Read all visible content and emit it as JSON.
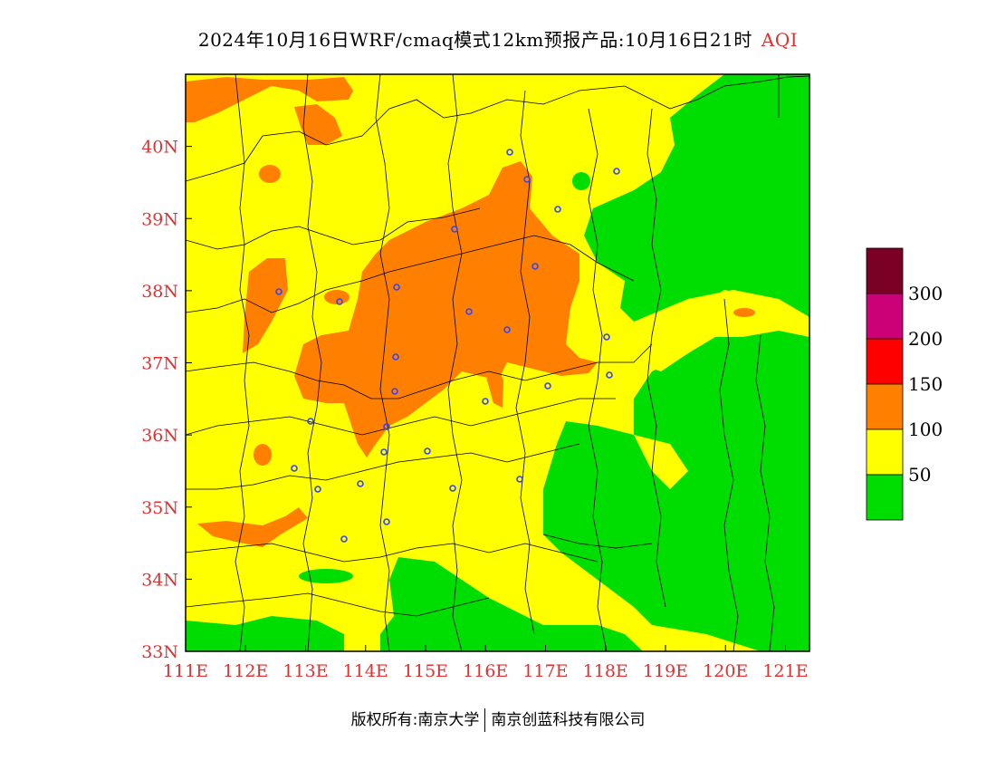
{
  "title": {
    "main": "2024年10月16日WRF/cmaq模式12km预报产品:10月16日21时",
    "variable": "AQI"
  },
  "map": {
    "lon_range": [
      111,
      121.4
    ],
    "lat_range": [
      33,
      41
    ],
    "lon_ticks": [
      "111E",
      "112E",
      "113E",
      "114E",
      "115E",
      "116E",
      "117E",
      "118E",
      "119E",
      "120E",
      "121E"
    ],
    "lat_ticks": [
      "33N",
      "34N",
      "35N",
      "36N",
      "37N",
      "38N",
      "39N",
      "40N"
    ],
    "tick_color": "#e03030",
    "colors": {
      "good": "#00dd00",
      "moderate": "#ffff00",
      "usg": "#ff8000",
      "unhealthy": "#ff0000",
      "very_unhealthy": "#cc0077",
      "hazardous": "#7a0025"
    },
    "station_marker_color": "#3344ff"
  },
  "legend": {
    "levels": [
      {
        "color": "#7a0025",
        "label": ""
      },
      {
        "color": "#cc0077",
        "label": "300"
      },
      {
        "color": "#ff0000",
        "label": "200"
      },
      {
        "color": "#ff8000",
        "label": "150"
      },
      {
        "color": "#ffff00",
        "label": "100"
      },
      {
        "color": "#00dd00",
        "label": "50"
      }
    ]
  },
  "footer": {
    "copyright": "版权所有:南京大学",
    "company": "南京创蓝科技有限公司"
  }
}
